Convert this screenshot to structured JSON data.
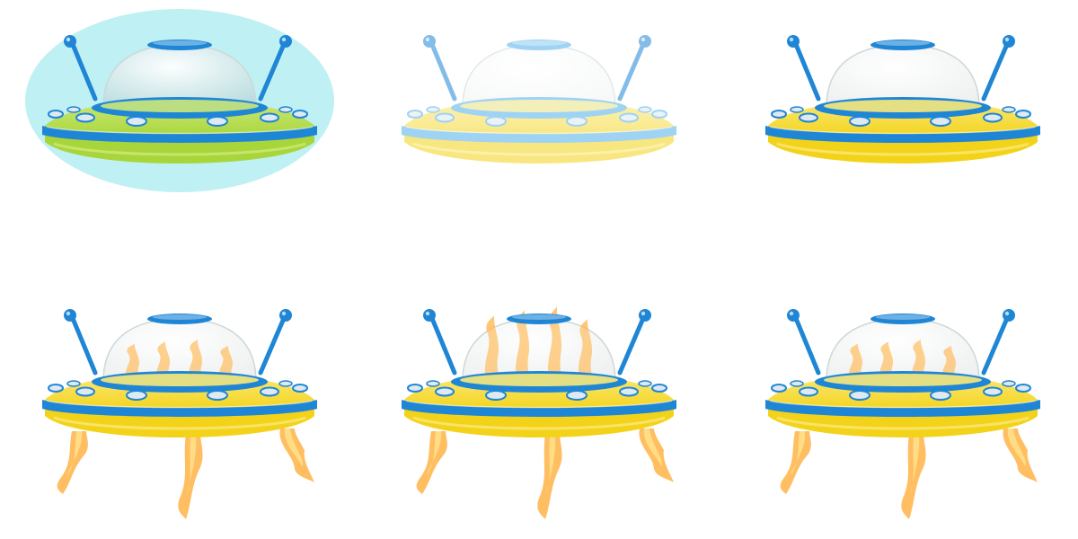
{
  "sprite_sheet": {
    "colors": {
      "shield": "#bff0f3",
      "hull_yellow": "#f3d31a",
      "hull_yellow_light": "#fbe97a",
      "hull_green": "#a8d63a",
      "hull_green_light": "#cde87a",
      "band_blue": "#1f86d6",
      "band_blue_light": "#4fb0ec",
      "dome_glass": "#e9ecec",
      "dome_glass_tinted": "#a9d3d6",
      "antenna_blue": "#1f86d6",
      "porthole": "#dfe9f2",
      "flame_outer": "#ffb347",
      "flame_inner": "#ffe08a"
    },
    "frames": [
      {
        "state": "shielded",
        "hull": "green",
        "shield": true,
        "faded": false,
        "flames_bottom": false,
        "flames_dome": "none"
      },
      {
        "state": "faded",
        "hull": "yellow",
        "shield": false,
        "faded": true,
        "flames_bottom": false,
        "flames_dome": "none"
      },
      {
        "state": "idle",
        "hull": "yellow",
        "shield": false,
        "faded": false,
        "flames_bottom": false,
        "flames_dome": "none"
      },
      {
        "state": "burning-1",
        "hull": "yellow",
        "shield": false,
        "faded": false,
        "flames_bottom": true,
        "flames_dome": "inside"
      },
      {
        "state": "burning-2",
        "hull": "yellow",
        "shield": false,
        "faded": false,
        "flames_bottom": true,
        "flames_dome": "through"
      },
      {
        "state": "burning-3",
        "hull": "yellow",
        "shield": false,
        "faded": false,
        "flames_bottom": true,
        "flames_dome": "inside"
      }
    ]
  }
}
